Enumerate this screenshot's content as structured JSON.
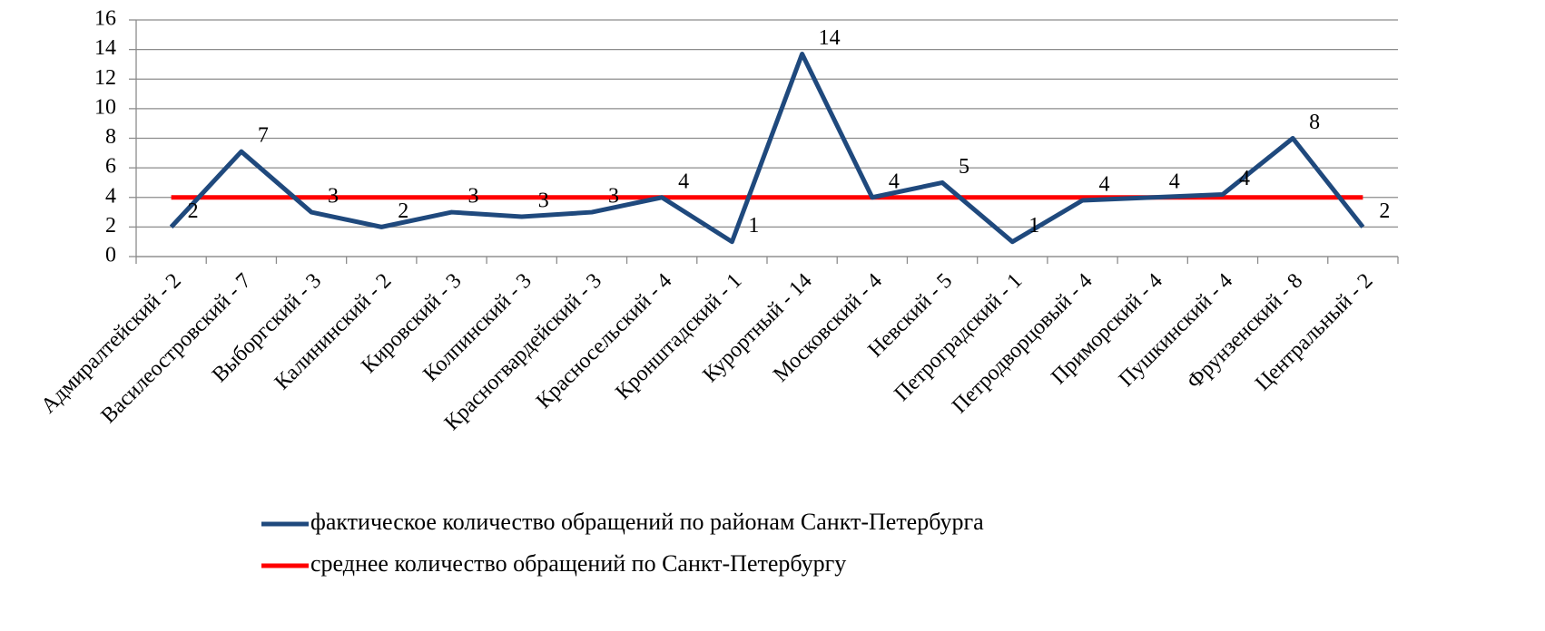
{
  "chart_data": {
    "type": "line",
    "categories": [
      "Адмиралтейский - 2",
      "Василеостровский - 7",
      "Выборгский - 3",
      "Калининский - 2",
      "Кировский - 3",
      "Колпинский - 3",
      "Красногвардейский - 3",
      "Красносельский - 4",
      "Кронштадский - 1",
      "Курортный - 14",
      "Московский - 4",
      "Невский - 5",
      "Петроградский - 1",
      "Петродворцовый - 4",
      "Приморский - 4",
      "Пушкинский - 4",
      "Фрунзенский - 8",
      "Центральный - 2"
    ],
    "series": [
      {
        "name": "фактическое количество обращений по районам Санкт-Петербурга",
        "color": "#1f497d",
        "values": [
          2,
          7.1,
          3,
          2,
          3,
          2.7,
          3,
          4,
          1,
          13.7,
          4,
          5,
          1,
          3.8,
          4,
          4.2,
          8,
          2
        ],
        "value_labels": [
          "2",
          "7",
          "3",
          "2",
          "3",
          "3",
          "3",
          "4",
          "1",
          "14",
          "4",
          "5",
          "1",
          "4",
          "4",
          "4",
          "8",
          "2"
        ]
      },
      {
        "name": "среднее количество обращений по Санкт-Петербургу",
        "color": "#ff0000",
        "values": [
          4,
          4,
          4,
          4,
          4,
          4,
          4,
          4,
          4,
          4,
          4,
          4,
          4,
          4,
          4,
          4,
          4,
          4
        ]
      }
    ],
    "ylim": [
      0,
      16
    ],
    "yticks": [
      0,
      2,
      4,
      6,
      8,
      10,
      12,
      14,
      16
    ],
    "grid": true
  }
}
